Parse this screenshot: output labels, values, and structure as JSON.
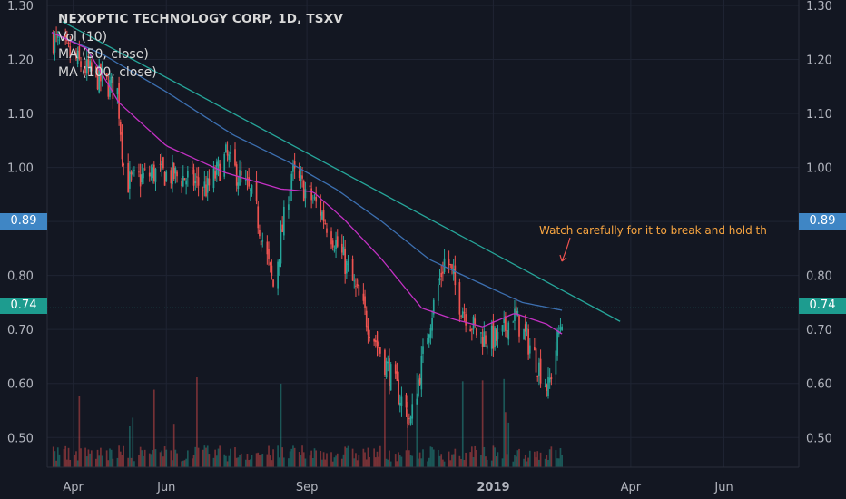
{
  "legend": {
    "title": "NEXOPTIC TECHNOLOGY CORP, 1D, TSXV",
    "vol": "Vol (10)",
    "ma50": "MA (50, close)",
    "ma100": "MA (100, close)"
  },
  "annotation": "Watch carefully for it to break and hold th",
  "price_tags": {
    "blue": "0.89",
    "teal": "0.74"
  },
  "colors": {
    "bg": "#131722",
    "up": "#26a69a",
    "down": "#ef5350",
    "ma50": "#c331c3",
    "ma100": "#3c6fb0",
    "trend": "#26a69a",
    "annot": "#f7a440",
    "tag_blue": "#3f86c5",
    "tag_teal": "#1d9c8f"
  },
  "chart_data": {
    "type": "candlestick",
    "y_ticks": [
      "1.30",
      "1.20",
      "1.10",
      "1.00",
      "0.90",
      "0.80",
      "0.70",
      "0.60",
      "0.50"
    ],
    "y_tick_values": [
      1.3,
      1.2,
      1.1,
      1.0,
      0.9,
      0.8,
      0.7,
      0.6,
      0.5
    ],
    "ylim": [
      0.445,
      1.31
    ],
    "x_ticks": [
      "Apr",
      "Jun",
      "Sep",
      "2019",
      "Apr",
      "Jun"
    ],
    "x_tick_dates": [
      "2018-04-01",
      "2018-06-01",
      "2018-09-01",
      "2019-01-01",
      "2019-04-01",
      "2019-06-01"
    ],
    "xlim": [
      "2018-03-15",
      "2019-07-20"
    ],
    "price_lines": [
      0.89,
      0.74
    ],
    "trendline": [
      [
        "2018-03-25",
        1.27
      ],
      [
        "2019-03-25",
        0.715
      ]
    ],
    "close_anchors": [
      [
        "2018-03-18",
        1.24
      ],
      [
        "2018-04-10",
        1.18
      ],
      [
        "2018-04-30",
        1.14
      ],
      [
        "2018-05-05",
        0.97
      ],
      [
        "2018-05-25",
        0.99
      ],
      [
        "2018-06-15",
        0.98
      ],
      [
        "2018-06-28",
        0.96
      ],
      [
        "2018-07-10",
        1.02
      ],
      [
        "2018-07-28",
        0.94
      ],
      [
        "2018-08-10",
        0.78
      ],
      [
        "2018-08-22",
        0.99
      ],
      [
        "2018-08-30",
        0.96
      ],
      [
        "2018-09-10",
        0.92
      ],
      [
        "2018-09-25",
        0.83
      ],
      [
        "2018-10-10",
        0.72
      ],
      [
        "2018-10-25",
        0.62
      ],
      [
        "2018-11-08",
        0.53
      ],
      [
        "2018-11-20",
        0.71
      ],
      [
        "2018-12-01",
        0.84
      ],
      [
        "2018-12-10",
        0.75
      ],
      [
        "2018-12-22",
        0.69
      ],
      [
        "2019-01-05",
        0.68
      ],
      [
        "2019-01-14",
        0.73
      ],
      [
        "2019-01-25",
        0.67
      ],
      [
        "2019-01-31",
        0.63
      ],
      [
        "2019-02-06",
        0.59
      ],
      [
        "2019-02-14",
        0.71
      ],
      [
        "2019-02-16",
        0.74
      ]
    ],
    "ma50_anchors": [
      [
        "2018-03-18",
        1.25
      ],
      [
        "2018-04-10",
        1.22
      ],
      [
        "2018-05-01",
        1.12
      ],
      [
        "2018-06-01",
        1.04
      ],
      [
        "2018-07-10",
        0.99
      ],
      [
        "2018-08-15",
        0.96
      ],
      [
        "2018-09-05",
        0.955
      ],
      [
        "2018-09-25",
        0.905
      ],
      [
        "2018-10-20",
        0.83
      ],
      [
        "2018-11-15",
        0.74
      ],
      [
        "2018-12-05",
        0.72
      ],
      [
        "2018-12-25",
        0.705
      ],
      [
        "2019-01-15",
        0.73
      ],
      [
        "2019-02-05",
        0.71
      ],
      [
        "2019-02-16",
        0.69
      ]
    ],
    "ma100_anchors": [
      [
        "2018-03-18",
        1.25
      ],
      [
        "2018-04-20",
        1.21
      ],
      [
        "2018-06-01",
        1.14
      ],
      [
        "2018-07-15",
        1.06
      ],
      [
        "2018-08-20",
        1.01
      ],
      [
        "2018-09-20",
        0.96
      ],
      [
        "2018-10-20",
        0.9
      ],
      [
        "2018-11-20",
        0.83
      ],
      [
        "2018-12-20",
        0.79
      ],
      [
        "2019-01-20",
        0.75
      ],
      [
        "2019-02-16",
        0.735
      ]
    ]
  }
}
